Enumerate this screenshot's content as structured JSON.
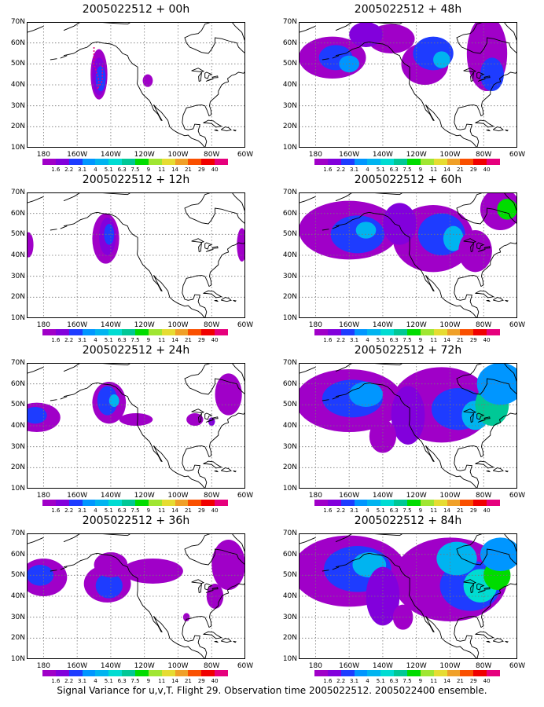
{
  "panels": [
    {
      "title": "2005022512 + 00h",
      "level": 0
    },
    {
      "title": "2005022512 + 48h",
      "level": 4
    },
    {
      "title": "2005022512 + 12h",
      "level": 1
    },
    {
      "title": "2005022512 + 60h",
      "level": 5
    },
    {
      "title": "2005022512 + 24h",
      "level": 2
    },
    {
      "title": "2005022512 + 72h",
      "level": 6
    },
    {
      "title": "2005022512 + 36h",
      "level": 3
    },
    {
      "title": "2005022512 + 84h",
      "level": 7
    }
  ],
  "lat_labels": [
    "70N",
    "60N",
    "50N",
    "40N",
    "30N",
    "20N",
    "10N"
  ],
  "lon_labels": [
    "180",
    "160W",
    "140W",
    "120W",
    "100W",
    "80W",
    "60W"
  ],
  "colorbar": {
    "labels": [
      "1.6",
      "2.2",
      "3.1",
      "4",
      "5.1",
      "6.3",
      "7.5",
      "9",
      "11",
      "14",
      "21",
      "29",
      "40"
    ],
    "colors": [
      "#a000c8",
      "#8200dc",
      "#1e3cff",
      "#0096ff",
      "#00b4f0",
      "#00dcd2",
      "#00c896",
      "#00dc00",
      "#a0e632",
      "#e6dc32",
      "#f0a028",
      "#fa5000",
      "#f00000",
      "#e6007d"
    ]
  },
  "footer": "Signal Variance for u,v,T. Flight 29. Observation time 2005022512. 2005022400 ensemble."
}
